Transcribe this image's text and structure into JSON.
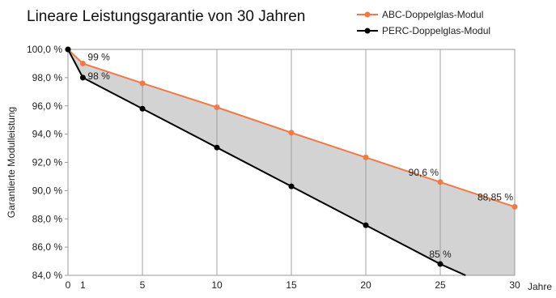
{
  "chart_data": {
    "type": "line",
    "title": "Lineare Leistungsgarantie von 30 Jahren",
    "xlabel": "Jahre",
    "ylabel": "Garantierte Modulleistung",
    "xlim": [
      0,
      30
    ],
    "ylim": [
      84,
      100
    ],
    "x_ticks": [
      0,
      1,
      5,
      10,
      15,
      20,
      25,
      30
    ],
    "y_ticks": [
      84,
      86,
      88,
      90,
      92,
      94,
      96,
      98,
      100
    ],
    "y_tick_labels": [
      "84,0 %",
      "86,0 %",
      "88,0 %",
      "90,0 %",
      "92,0 %",
      "94,0 %",
      "96,0 %",
      "98,0 %",
      "100,0 %"
    ],
    "grid": "vertical",
    "legend_position": "top-right",
    "fill_between_series": true,
    "series": [
      {
        "name": "ABC-Doppelglas-Modul",
        "color": "#f07a46",
        "x": [
          0,
          1,
          5,
          10,
          15,
          20,
          25,
          30
        ],
        "y": [
          100,
          99,
          97.6,
          95.9,
          94.1,
          92.35,
          90.6,
          88.85
        ]
      },
      {
        "name": "PERC-Doppelglas-Modul",
        "color": "#000000",
        "x": [
          0,
          1,
          5,
          10,
          15,
          20,
          25,
          26.7
        ],
        "y": [
          100,
          98,
          95.8,
          93.05,
          90.3,
          87.55,
          84.8,
          84
        ]
      }
    ],
    "annotations": [
      {
        "text": "99 %",
        "x": 1,
        "y": 99,
        "series": 0
      },
      {
        "text": "98 %",
        "x": 1,
        "y": 98,
        "series": 1
      },
      {
        "text": "90,6 %",
        "x": 25,
        "y": 90.6,
        "series": 0
      },
      {
        "text": "88,85 %",
        "x": 30,
        "y": 88.85,
        "series": 0
      },
      {
        "text": "85 %",
        "x": 25,
        "y": 84.8,
        "series": 1
      }
    ]
  }
}
